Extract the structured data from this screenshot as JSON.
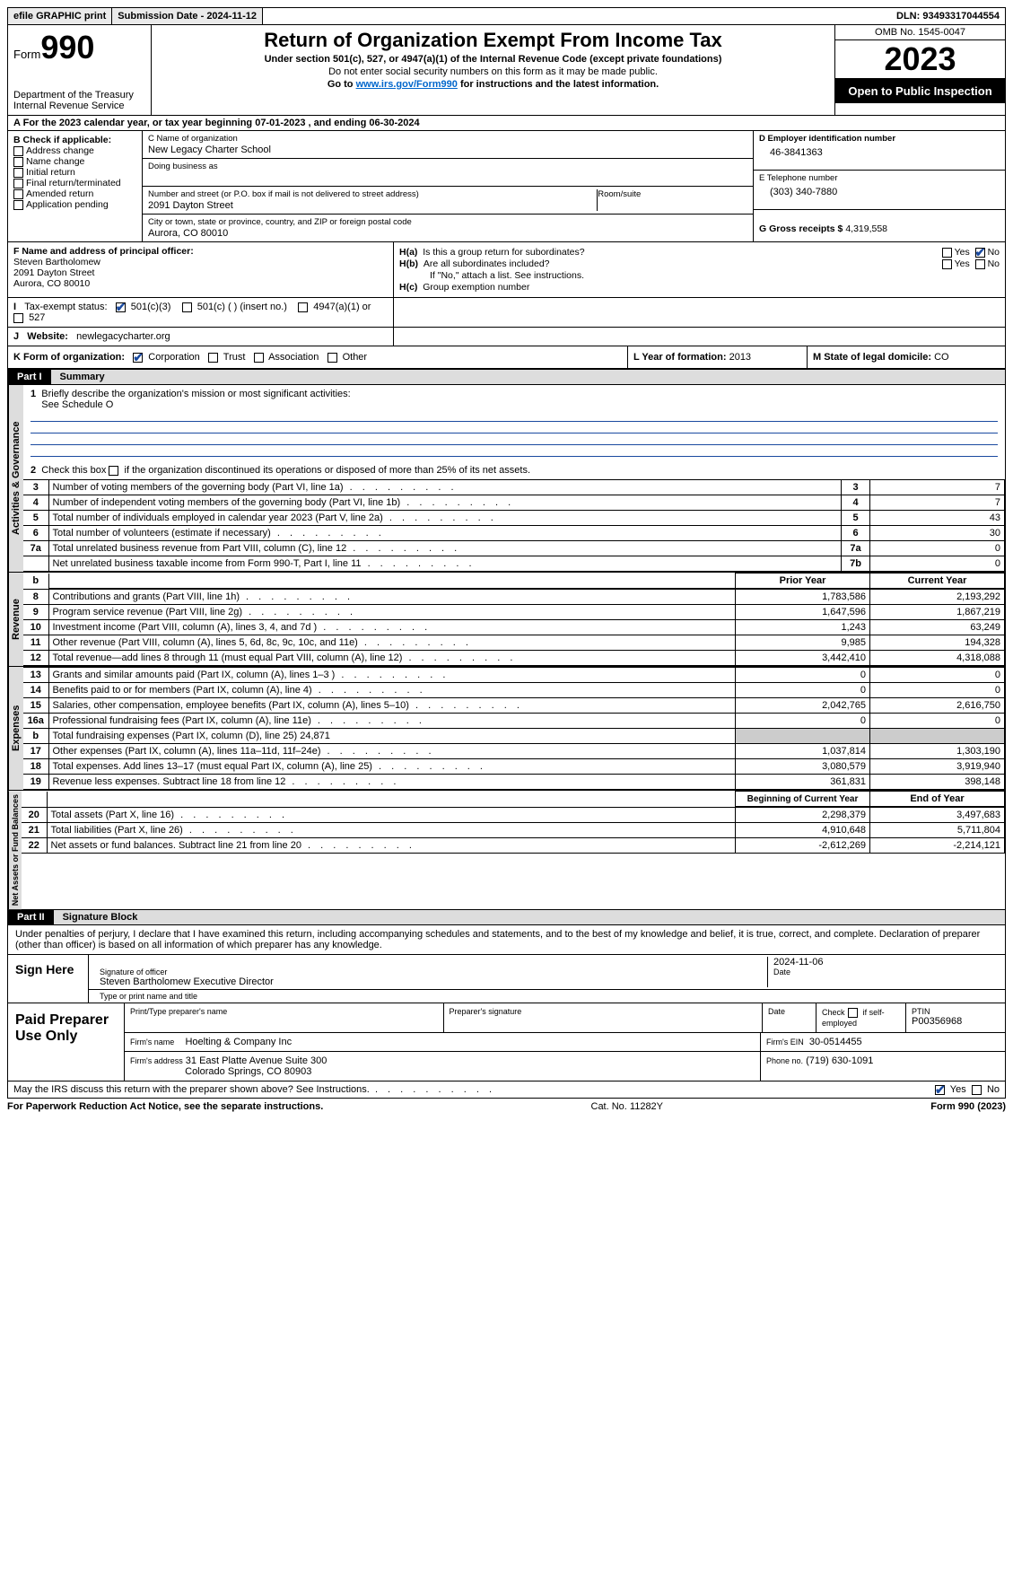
{
  "topbar": {
    "efile": "efile GRAPHIC print",
    "sub_label": "Submission Date - 2024-11-12",
    "dln_label": "DLN: 93493317044554"
  },
  "header": {
    "form_word": "Form",
    "form_num": "990",
    "dept": "Department of the Treasury\nInternal Revenue Service",
    "title": "Return of Organization Exempt From Income Tax",
    "sub": "Under section 501(c), 527, or 4947(a)(1) of the Internal Revenue Code (except private foundations)",
    "sub2": "Do not enter social security numbers on this form as it may be made public.",
    "sub3_pre": "Go to ",
    "sub3_link": "www.irs.gov/Form990",
    "sub3_post": " for instructions and the latest information.",
    "omb": "OMB No. 1545-0047",
    "year": "2023",
    "otp": "Open to Public Inspection"
  },
  "A": {
    "text": "For the 2023 calendar year, or tax year beginning 07-01-2023   , and ending 06-30-2024"
  },
  "B": {
    "label": "B Check if applicable:",
    "opts": [
      "Address change",
      "Name change",
      "Initial return",
      "Final return/terminated",
      "Amended return",
      "Application pending"
    ]
  },
  "C": {
    "name_lab": "C Name of organization",
    "name": "New Legacy Charter School",
    "dba_lab": "Doing business as",
    "dba": "",
    "addr_lab": "Number and street (or P.O. box if mail is not delivered to street address)",
    "addr": "2091 Dayton Street",
    "room_lab": "Room/suite",
    "room": "",
    "city_lab": "City or town, state or province, country, and ZIP or foreign postal code",
    "city": "Aurora, CO  80010"
  },
  "D": {
    "lab": "D Employer identification number",
    "val": "46-3841363"
  },
  "E": {
    "lab": "E Telephone number",
    "val": "(303) 340-7880"
  },
  "G": {
    "lab": "G Gross receipts $",
    "val": "4,319,558"
  },
  "F": {
    "lab": "F  Name and address of principal officer:",
    "name": "Steven Bartholomew",
    "addr1": "2091 Dayton Street",
    "addr2": "Aurora, CO  80010"
  },
  "H": {
    "a_lab": "H(a)  Is this a group return for subordinates?",
    "b_lab": "H(b)  Are all subordinates included?",
    "b_note": "If \"No,\" attach a list. See instructions.",
    "c_lab": "H(c)  Group exemption number",
    "yes": "Yes",
    "no": "No",
    "a_yes": false,
    "a_no": true,
    "b_yes": false,
    "b_no": false
  },
  "I": {
    "lab": "I   Tax-exempt status:",
    "o1": "501(c)(3)",
    "o2": "501(c) (  ) (insert no.)",
    "o3": "4947(a)(1) or",
    "o4": "527",
    "checked": "o1"
  },
  "J": {
    "lab": "J   Website:",
    "val": "newlegacycharter.org"
  },
  "K": {
    "lab": "K Form of organization:",
    "opts": [
      "Corporation",
      "Trust",
      "Association",
      "Other"
    ],
    "checked": 0
  },
  "L": {
    "lab": "L Year of formation:",
    "val": "2013"
  },
  "M": {
    "lab": "M State of legal domicile:",
    "val": "CO"
  },
  "parts": {
    "p1": "Part I",
    "p1t": "Summary",
    "p2": "Part II",
    "p2t": "Signature Block"
  },
  "tabs": {
    "ag": "Activities & Governance",
    "rev": "Revenue",
    "exp": "Expenses",
    "net": "Net Assets or Fund Balances"
  },
  "summary1": {
    "l1": "Briefly describe the organization's mission or most significant activities:",
    "l1v": "See Schedule O",
    "l2": "Check this box      if the organization discontinued its operations or disposed of more than 25% of its net assets.",
    "rows": [
      {
        "n": "3",
        "d": "Number of voting members of the governing body (Part VI, line 1a)",
        "c": "3",
        "v": "7"
      },
      {
        "n": "4",
        "d": "Number of independent voting members of the governing body (Part VI, line 1b)",
        "c": "4",
        "v": "7"
      },
      {
        "n": "5",
        "d": "Total number of individuals employed in calendar year 2023 (Part V, line 2a)",
        "c": "5",
        "v": "43"
      },
      {
        "n": "6",
        "d": "Total number of volunteers (estimate if necessary)",
        "c": "6",
        "v": "30"
      },
      {
        "n": "7a",
        "d": "Total unrelated business revenue from Part VIII, column (C), line 12",
        "c": "7a",
        "v": "0"
      },
      {
        "n": "",
        "d": "Net unrelated business taxable income from Form 990-T, Part I, line 11",
        "c": "7b",
        "v": "0"
      }
    ]
  },
  "cols": {
    "prior": "Prior Year",
    "current": "Current Year",
    "boy": "Beginning of Current Year",
    "eoy": "End of Year"
  },
  "revenue": [
    {
      "n": "8",
      "d": "Contributions and grants (Part VIII, line 1h)",
      "p": "1,783,586",
      "c": "2,193,292"
    },
    {
      "n": "9",
      "d": "Program service revenue (Part VIII, line 2g)",
      "p": "1,647,596",
      "c": "1,867,219"
    },
    {
      "n": "10",
      "d": "Investment income (Part VIII, column (A), lines 3, 4, and 7d )",
      "p": "1,243",
      "c": "63,249"
    },
    {
      "n": "11",
      "d": "Other revenue (Part VIII, column (A), lines 5, 6d, 8c, 9c, 10c, and 11e)",
      "p": "9,985",
      "c": "194,328"
    },
    {
      "n": "12",
      "d": "Total revenue—add lines 8 through 11 (must equal Part VIII, column (A), line 12)",
      "p": "3,442,410",
      "c": "4,318,088"
    }
  ],
  "expenses": [
    {
      "n": "13",
      "d": "Grants and similar amounts paid (Part IX, column (A), lines 1–3 )",
      "p": "0",
      "c": "0"
    },
    {
      "n": "14",
      "d": "Benefits paid to or for members (Part IX, column (A), line 4)",
      "p": "0",
      "c": "0"
    },
    {
      "n": "15",
      "d": "Salaries, other compensation, employee benefits (Part IX, column (A), lines 5–10)",
      "p": "2,042,765",
      "c": "2,616,750"
    },
    {
      "n": "16a",
      "d": "Professional fundraising fees (Part IX, column (A), line 11e)",
      "p": "0",
      "c": "0"
    },
    {
      "n": "b",
      "d": "Total fundraising expenses (Part IX, column (D), line 25) 24,871",
      "p": "",
      "c": "",
      "grey": true
    },
    {
      "n": "17",
      "d": "Other expenses (Part IX, column (A), lines 11a–11d, 11f–24e)",
      "p": "1,037,814",
      "c": "1,303,190"
    },
    {
      "n": "18",
      "d": "Total expenses. Add lines 13–17 (must equal Part IX, column (A), line 25)",
      "p": "3,080,579",
      "c": "3,919,940"
    },
    {
      "n": "19",
      "d": "Revenue less expenses. Subtract line 18 from line 12",
      "p": "361,831",
      "c": "398,148"
    }
  ],
  "net": [
    {
      "n": "20",
      "d": "Total assets (Part X, line 16)",
      "p": "2,298,379",
      "c": "3,497,683"
    },
    {
      "n": "21",
      "d": "Total liabilities (Part X, line 26)",
      "p": "4,910,648",
      "c": "5,711,804"
    },
    {
      "n": "22",
      "d": "Net assets or fund balances. Subtract line 21 from line 20",
      "p": "-2,612,269",
      "c": "-2,214,121"
    }
  ],
  "sig": {
    "decl": "Under penalties of perjury, I declare that I have examined this return, including accompanying schedules and statements, and to the best of my knowledge and belief, it is true, correct, and complete. Declaration of preparer (other than officer) is based on all information of which preparer has any knowledge.",
    "sign_here": "Sign Here",
    "sig_lab": "Signature of officer",
    "date_lab": "Date",
    "date": "2024-11-06",
    "name": "Steven Bartholomew  Executive Director",
    "name_lab": "Type or print name and title"
  },
  "prep": {
    "title": "Paid Preparer Use Only",
    "h1": "Print/Type preparer's name",
    "h2": "Preparer's signature",
    "h3": "Date",
    "h4_pre": "Check",
    "h4_post": "if self-employed",
    "ptin_lab": "PTIN",
    "ptin": "P00356968",
    "firm_lab": "Firm's name",
    "firm": "Hoelting & Company Inc",
    "ein_lab": "Firm's EIN",
    "ein": "30-0514455",
    "addr_lab": "Firm's address",
    "addr1": "31 East Platte Avenue Suite 300",
    "addr2": "Colorado Springs, CO  80903",
    "phone_lab": "Phone no.",
    "phone": "(719) 630-1091"
  },
  "footer": {
    "q": "May the IRS discuss this return with the preparer shown above? See Instructions.",
    "yes": "Yes",
    "no": "No",
    "yes_checked": true,
    "pra": "For Paperwork Reduction Act Notice, see the separate instructions.",
    "cat": "Cat. No. 11282Y",
    "form": "Form 990 (2023)"
  }
}
